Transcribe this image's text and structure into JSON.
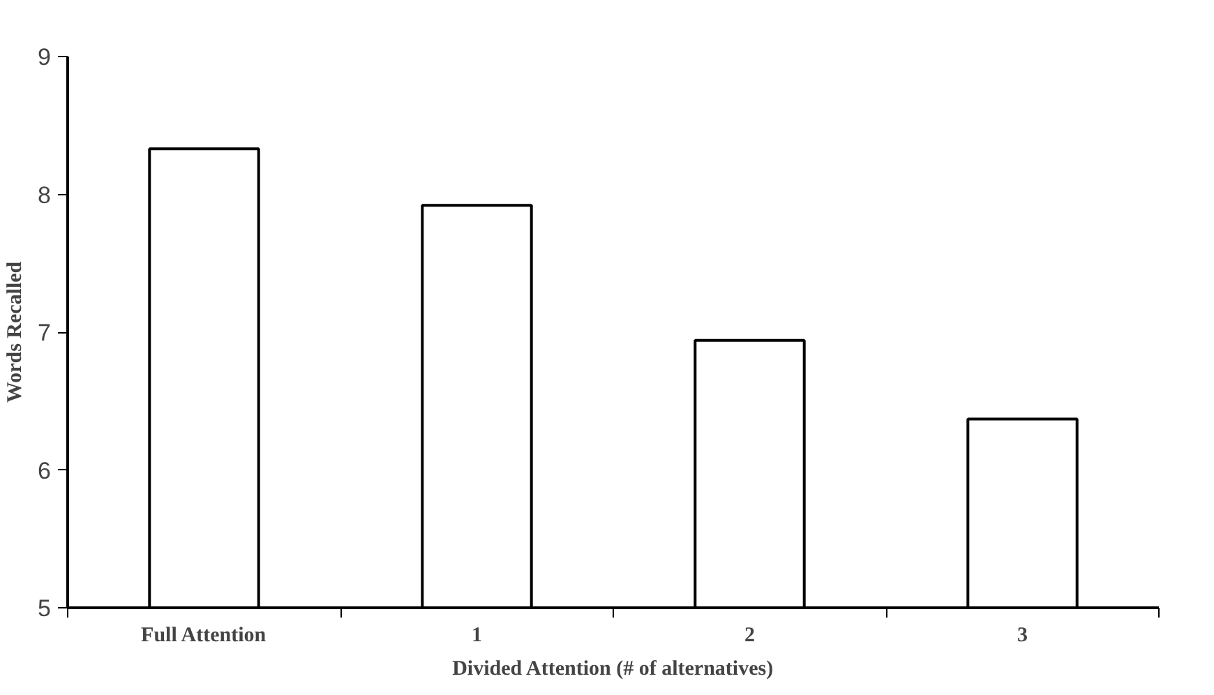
{
  "chart_data": {
    "type": "bar",
    "categories": [
      "Full Attention",
      "1",
      "2",
      "3"
    ],
    "values": [
      8.33,
      7.92,
      6.94,
      6.37
    ],
    "color": "#ffffff",
    "ylim": [
      5,
      9
    ],
    "yticks": [
      5,
      6,
      7,
      8,
      9
    ],
    "xlabel": "Divided Attention (# of alternatives)",
    "ylabel": "Words Recalled",
    "grid": false
  }
}
